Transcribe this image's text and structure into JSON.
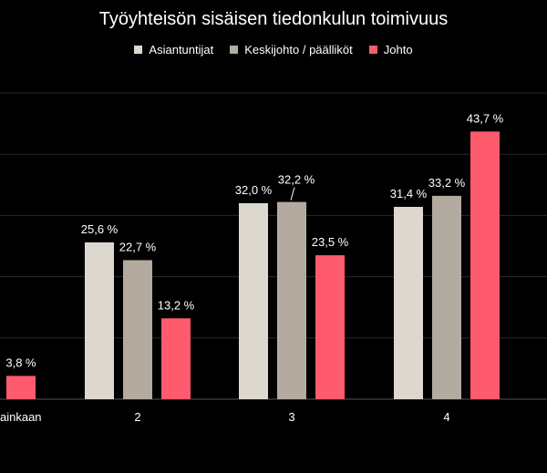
{
  "chart_data": {
    "type": "bar",
    "title": "Työyhteisön sisäisen tiedonkulun toimivuus",
    "categories": [
      "ainkaan",
      "2",
      "3",
      "4"
    ],
    "series": [
      {
        "name": "Asiantuntijat",
        "color": "#dcd8d0",
        "values": [
          null,
          25.6,
          32.0,
          31.4
        ],
        "labels": [
          "",
          "25,6 %",
          "32,0 %",
          "31,4 %"
        ]
      },
      {
        "name": "Keskijohto / päälliköt",
        "color": "#b3aba0",
        "values": [
          null,
          22.7,
          32.2,
          33.2
        ],
        "labels": [
          "",
          "22,7 %",
          "32,2 %",
          "33,2 %"
        ]
      },
      {
        "name": "Johto",
        "color": "#ff5a6e",
        "values": [
          3.8,
          13.2,
          23.5,
          43.7
        ],
        "labels": [
          "3,8 %",
          "13,2 %",
          "23,5 %",
          "43,7 %"
        ]
      }
    ],
    "ylim": [
      0,
      50
    ],
    "grid": true,
    "legend_position": "top"
  }
}
